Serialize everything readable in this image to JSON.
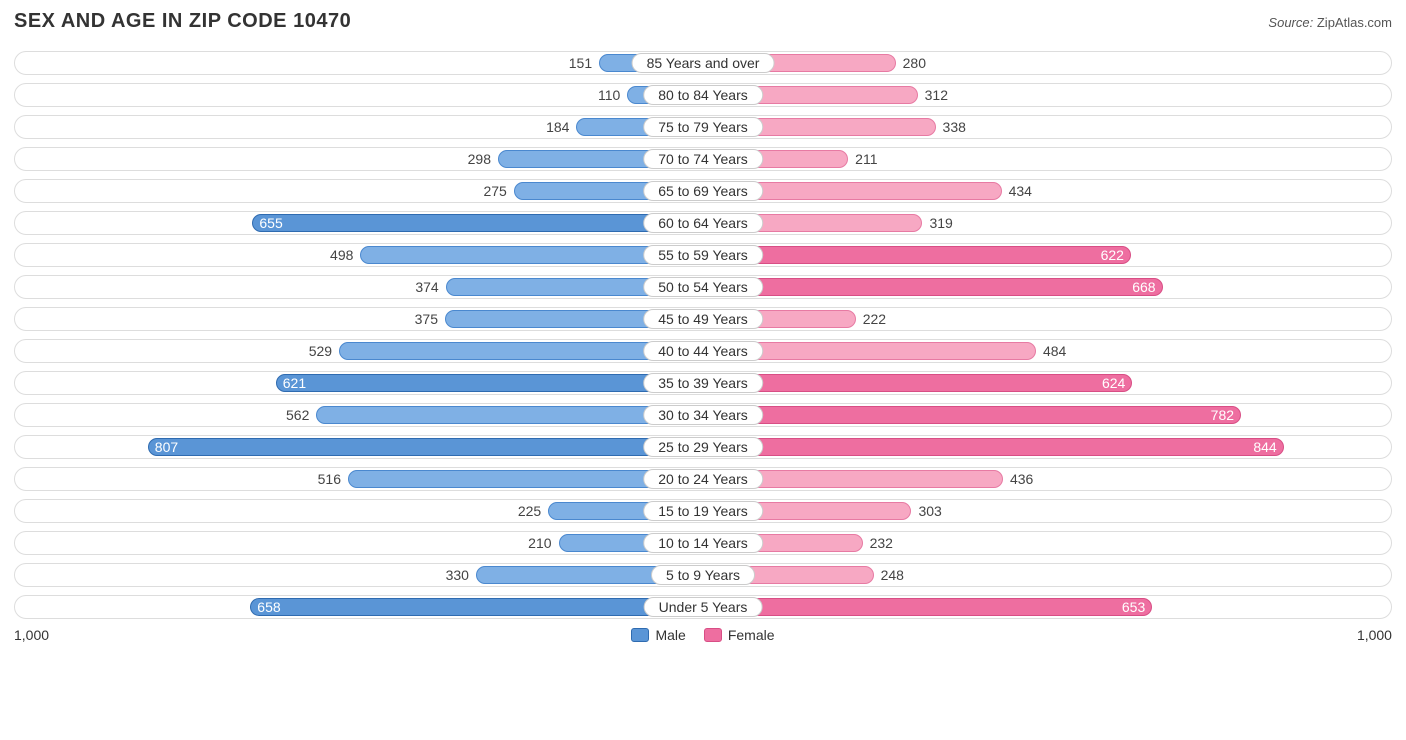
{
  "title": "SEX AND AGE IN ZIP CODE 10470",
  "source_label": "Source:",
  "source_value": "ZipAtlas.com",
  "chart": {
    "type": "population-pyramid",
    "axis_max": 1000,
    "axis_max_label": "1,000",
    "male": {
      "label": "Male",
      "fill": "#7fb0e5",
      "stroke": "#4a88cf",
      "dark_fill": "#5a95d6",
      "dark_stroke": "#2f6bb0"
    },
    "female": {
      "label": "Female",
      "fill": "#f7a8c3",
      "stroke": "#e77aa3",
      "dark_fill": "#ee6ea0",
      "dark_stroke": "#d84e85"
    },
    "track_border": "#dddddd",
    "label_border": "#cccccc",
    "inside_threshold": 600,
    "rows": [
      {
        "age": "85 Years and over",
        "male": 151,
        "female": 280
      },
      {
        "age": "80 to 84 Years",
        "male": 110,
        "female": 312
      },
      {
        "age": "75 to 79 Years",
        "male": 184,
        "female": 338
      },
      {
        "age": "70 to 74 Years",
        "male": 298,
        "female": 211
      },
      {
        "age": "65 to 69 Years",
        "male": 275,
        "female": 434
      },
      {
        "age": "60 to 64 Years",
        "male": 655,
        "female": 319
      },
      {
        "age": "55 to 59 Years",
        "male": 498,
        "female": 622
      },
      {
        "age": "50 to 54 Years",
        "male": 374,
        "female": 668
      },
      {
        "age": "45 to 49 Years",
        "male": 375,
        "female": 222
      },
      {
        "age": "40 to 44 Years",
        "male": 529,
        "female": 484
      },
      {
        "age": "35 to 39 Years",
        "male": 621,
        "female": 624
      },
      {
        "age": "30 to 34 Years",
        "male": 562,
        "female": 782
      },
      {
        "age": "25 to 29 Years",
        "male": 807,
        "female": 844
      },
      {
        "age": "20 to 24 Years",
        "male": 516,
        "female": 436
      },
      {
        "age": "15 to 19 Years",
        "male": 225,
        "female": 303
      },
      {
        "age": "10 to 14 Years",
        "male": 210,
        "female": 232
      },
      {
        "age": "5 to 9 Years",
        "male": 330,
        "female": 248
      },
      {
        "age": "Under 5 Years",
        "male": 658,
        "female": 653
      }
    ]
  }
}
